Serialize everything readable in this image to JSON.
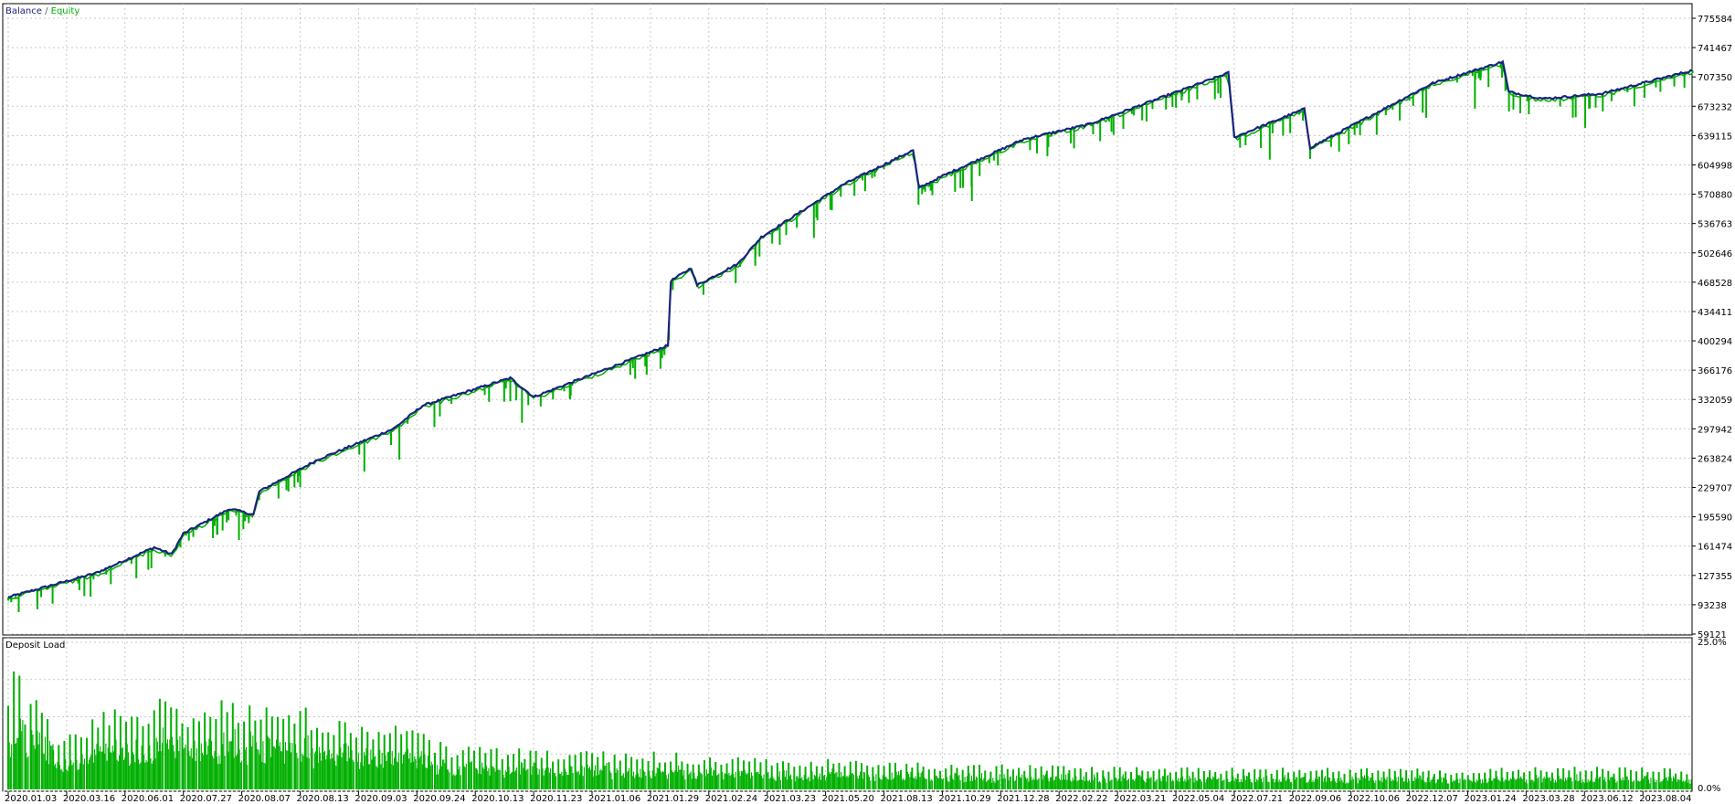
{
  "legend": {
    "balance_label": "Balance",
    "separator": " / ",
    "equity_label": "Equity",
    "balance_color": "#1a237e",
    "equity_color": "#00b000"
  },
  "deposit_panel": {
    "label": "Deposit Load",
    "bar_color": "#00b000"
  },
  "chart_data": [
    {
      "type": "line",
      "series": [
        {
          "name": "Balance"
        },
        {
          "name": "Equity"
        }
      ],
      "y_ticks": [
        "775584",
        "741467",
        "707350",
        "673232",
        "639115",
        "604998",
        "570880",
        "536763",
        "502646",
        "468528",
        "434411",
        "400294",
        "366176",
        "332059",
        "297942",
        "263824",
        "229707",
        "195590",
        "161474",
        "127355",
        "93238",
        "59121"
      ],
      "ylim": [
        59121,
        775584
      ],
      "x_ticks": [
        "2020.01.03",
        "2020.03.16",
        "2020.06.01",
        "2020.07.27",
        "2020.08.07",
        "2020.08.13",
        "2020.09.03",
        "2020.09.24",
        "2020.10.13",
        "2020.11.23",
        "2021.01.06",
        "2021.01.29",
        "2021.02.24",
        "2021.03.23",
        "2021.05.20",
        "2021.08.13",
        "2021.10.29",
        "2021.12.28",
        "2022.02.22",
        "2022.03.21",
        "2022.05.04",
        "2022.07.21",
        "2022.09.06",
        "2022.10.06",
        "2022.12.07",
        "2023.01.24",
        "2023.03.28",
        "2023.06.12",
        "2023.08.04"
      ],
      "balance_points": [
        [
          0,
          102000
        ],
        [
          1.5,
          130000
        ],
        [
          2.5,
          160000
        ],
        [
          2.8,
          152000
        ],
        [
          3.0,
          176000
        ],
        [
          3.8,
          205000
        ],
        [
          4.2,
          198000
        ],
        [
          4.3,
          225000
        ],
        [
          5.3,
          262000
        ],
        [
          6.6,
          298000
        ],
        [
          7.1,
          325000
        ],
        [
          8.6,
          357000
        ],
        [
          9.0,
          335000
        ],
        [
          11.3,
          395000
        ],
        [
          11.35,
          470000
        ],
        [
          11.7,
          485000
        ],
        [
          11.8,
          465000
        ],
        [
          12.5,
          490000
        ],
        [
          12.9,
          521000
        ],
        [
          14.3,
          582000
        ],
        [
          15.5,
          622000
        ],
        [
          15.6,
          578000
        ],
        [
          16.0,
          592000
        ],
        [
          17.4,
          635000
        ],
        [
          18.5,
          652000
        ],
        [
          20.9,
          712000
        ],
        [
          21.0,
          637000
        ],
        [
          22.2,
          670000
        ],
        [
          22.3,
          625000
        ],
        [
          24.4,
          700000
        ],
        [
          25.6,
          725000
        ],
        [
          25.7,
          690000
        ],
        [
          26.3,
          682000
        ],
        [
          27.3,
          688000
        ],
        [
          28.85,
          715000
        ]
      ],
      "equity_points": [
        [
          0,
          98000
        ],
        [
          0.5,
          88000
        ],
        [
          1.2,
          118000
        ],
        [
          2.4,
          134000
        ],
        [
          3.4,
          195000
        ],
        [
          4.0,
          200000
        ],
        [
          4.3,
          215000
        ],
        [
          4.8,
          225000
        ],
        [
          6.1,
          248000
        ],
        [
          6.7,
          262000
        ],
        [
          7.3,
          300000
        ],
        [
          8.6,
          330000
        ],
        [
          8.8,
          305000
        ],
        [
          10.4,
          370000
        ],
        [
          11.2,
          380000
        ],
        [
          11.4,
          490000
        ],
        [
          12.6,
          505000
        ],
        [
          12.8,
          498000
        ],
        [
          13.8,
          520000
        ],
        [
          15.0,
          600000
        ],
        [
          15.8,
          575000
        ],
        [
          16.5,
          580000
        ],
        [
          17.8,
          615000
        ],
        [
          18.2,
          630000
        ],
        [
          19.6,
          670000
        ],
        [
          20.1,
          680000
        ],
        [
          21.1,
          625000
        ],
        [
          22.3,
          612000
        ],
        [
          23.1,
          648000
        ],
        [
          24.0,
          680000
        ],
        [
          25.9,
          665000
        ],
        [
          26.8,
          660000
        ],
        [
          28.3,
          690000
        ],
        [
          28.85,
          712000
        ]
      ]
    },
    {
      "type": "bar",
      "title": "Deposit Load",
      "y_ticks": [
        "25.0%",
        "0.0%"
      ],
      "ylim": [
        0,
        25
      ],
      "bar_count": 300,
      "profile": [
        [
          0,
          18
        ],
        [
          0.15,
          20
        ],
        [
          0.3,
          14
        ],
        [
          0.5,
          20
        ],
        [
          0.8,
          7
        ],
        [
          1.5,
          13
        ],
        [
          2.5,
          14
        ],
        [
          3.5,
          14
        ],
        [
          4.2,
          15
        ],
        [
          5.0,
          13
        ],
        [
          6.0,
          11
        ],
        [
          6.8,
          10
        ],
        [
          7.5,
          7
        ],
        [
          9.5,
          6
        ],
        [
          11.3,
          6
        ],
        [
          12.0,
          5
        ],
        [
          14.0,
          5
        ],
        [
          16.0,
          4
        ],
        [
          20.0,
          3.5
        ],
        [
          25.0,
          3.2
        ],
        [
          26.0,
          3.6
        ],
        [
          28.85,
          3.4
        ]
      ]
    }
  ]
}
